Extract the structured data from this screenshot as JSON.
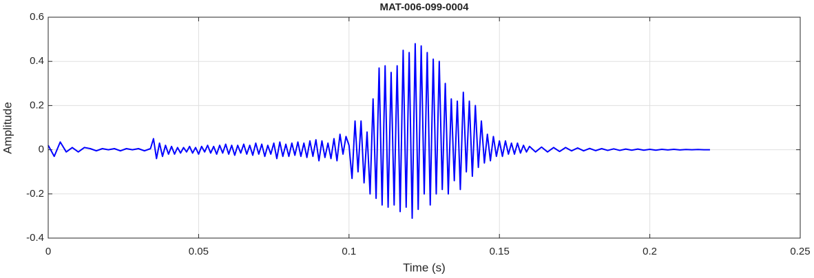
{
  "chart_data": {
    "type": "line",
    "title": "MAT-006-099-0004",
    "xlabel": "Time (s)",
    "ylabel": "Amplitude",
    "xlim": [
      0,
      0.25
    ],
    "xticks": [
      0,
      0.05,
      0.1,
      0.15,
      0.2,
      0.25
    ],
    "ylim": [
      -0.4,
      0.6
    ],
    "yticks": [
      -0.4,
      -0.2,
      0,
      0.2,
      0.4,
      0.6
    ],
    "grid": true,
    "series": [
      {
        "name": "Amplitude",
        "color": "#0000ff",
        "x": [
          0,
          0.002,
          0.004,
          0.006,
          0.008,
          0.01,
          0.012,
          0.014,
          0.016,
          0.018,
          0.02,
          0.022,
          0.024,
          0.026,
          0.028,
          0.03,
          0.032,
          0.034,
          0.035,
          0.036,
          0.037,
          0.038,
          0.039,
          0.04,
          0.041,
          0.042,
          0.043,
          0.044,
          0.045,
          0.046,
          0.047,
          0.048,
          0.049,
          0.05,
          0.051,
          0.052,
          0.053,
          0.054,
          0.055,
          0.056,
          0.057,
          0.058,
          0.059,
          0.06,
          0.061,
          0.062,
          0.063,
          0.064,
          0.065,
          0.066,
          0.067,
          0.068,
          0.069,
          0.07,
          0.071,
          0.072,
          0.073,
          0.074,
          0.075,
          0.076,
          0.077,
          0.078,
          0.079,
          0.08,
          0.081,
          0.082,
          0.083,
          0.084,
          0.085,
          0.086,
          0.087,
          0.088,
          0.089,
          0.09,
          0.091,
          0.092,
          0.093,
          0.094,
          0.095,
          0.096,
          0.097,
          0.098,
          0.099,
          0.1,
          0.101,
          0.102,
          0.103,
          0.104,
          0.105,
          0.106,
          0.107,
          0.108,
          0.109,
          0.11,
          0.111,
          0.112,
          0.113,
          0.114,
          0.115,
          0.116,
          0.117,
          0.118,
          0.119,
          0.12,
          0.121,
          0.122,
          0.123,
          0.124,
          0.125,
          0.126,
          0.127,
          0.128,
          0.129,
          0.13,
          0.131,
          0.132,
          0.133,
          0.134,
          0.135,
          0.136,
          0.137,
          0.138,
          0.139,
          0.14,
          0.141,
          0.142,
          0.143,
          0.144,
          0.145,
          0.146,
          0.147,
          0.148,
          0.149,
          0.15,
          0.151,
          0.152,
          0.153,
          0.154,
          0.155,
          0.156,
          0.157,
          0.158,
          0.159,
          0.16,
          0.162,
          0.164,
          0.166,
          0.168,
          0.17,
          0.172,
          0.174,
          0.176,
          0.178,
          0.18,
          0.182,
          0.184,
          0.186,
          0.188,
          0.19,
          0.192,
          0.194,
          0.196,
          0.198,
          0.2,
          0.202,
          0.204,
          0.206,
          0.208,
          0.21,
          0.212,
          0.214,
          0.216,
          0.218,
          0.22
        ],
        "values": [
          0.02,
          -0.03,
          0.035,
          -0.01,
          0.01,
          -0.01,
          0.01,
          0.005,
          -0.005,
          0.005,
          0,
          0.005,
          -0.005,
          0.005,
          0,
          0.005,
          -0.005,
          0.005,
          0.05,
          -0.04,
          0.03,
          -0.03,
          0.02,
          -0.02,
          0.015,
          -0.02,
          0.01,
          -0.015,
          0.01,
          -0.01,
          0.015,
          -0.015,
          0.01,
          -0.02,
          0.015,
          -0.01,
          0.02,
          -0.015,
          0.015,
          -0.02,
          0.02,
          -0.015,
          0.025,
          -0.02,
          0.02,
          -0.025,
          0.02,
          -0.015,
          0.025,
          -0.02,
          0.02,
          -0.025,
          0.03,
          -0.02,
          0.025,
          -0.03,
          0.02,
          -0.02,
          0.03,
          -0.04,
          0.035,
          -0.03,
          0.025,
          -0.03,
          0.03,
          -0.025,
          0.035,
          -0.03,
          0.03,
          -0.035,
          0.04,
          -0.03,
          0.045,
          -0.05,
          0.04,
          -0.035,
          0.03,
          -0.04,
          0.05,
          -0.05,
          0.07,
          -0.02,
          0.06,
          0.02,
          -0.13,
          0.13,
          -0.1,
          0.13,
          -0.15,
          0.08,
          -0.2,
          0.23,
          -0.22,
          0.37,
          -0.25,
          0.38,
          -0.26,
          0.35,
          -0.25,
          0.38,
          -0.28,
          0.45,
          -0.26,
          0.44,
          -0.31,
          0.48,
          -0.27,
          0.47,
          -0.2,
          0.44,
          -0.25,
          0.41,
          -0.2,
          0.4,
          -0.18,
          0.3,
          -0.2,
          0.23,
          -0.14,
          0.22,
          -0.18,
          0.26,
          -0.1,
          0.22,
          -0.12,
          0.2,
          -0.08,
          0.13,
          -0.06,
          0.07,
          -0.05,
          0.06,
          -0.03,
          0.04,
          -0.03,
          0.04,
          -0.02,
          0.03,
          -0.02,
          0.03,
          -0.015,
          0.02,
          -0.01,
          0.015,
          -0.01,
          0.012,
          -0.01,
          0.01,
          -0.008,
          0.01,
          -0.005,
          0.008,
          -0.005,
          0.006,
          -0.004,
          0.005,
          -0.003,
          0.004,
          -0.003,
          0.003,
          -0.002,
          0.003,
          -0.002,
          0.002,
          -0.002,
          0.002,
          -0.001,
          0.002,
          -0.001,
          0.001,
          0,
          0.001,
          0,
          0
        ]
      }
    ]
  }
}
